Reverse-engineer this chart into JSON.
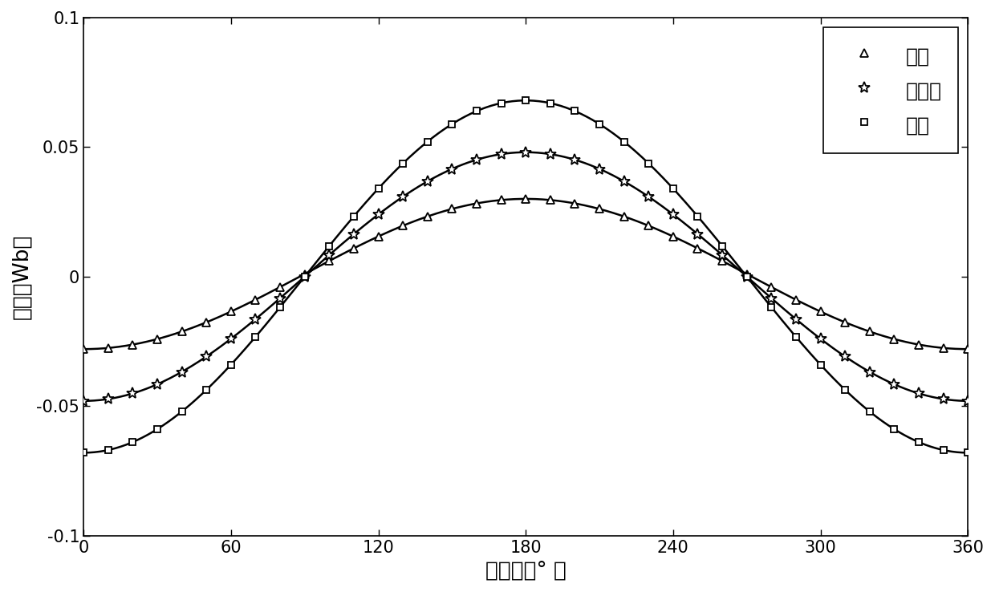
{
  "title": "",
  "xlabel": "电角度（° ）",
  "ylabel": "磁链（Wb）",
  "xlim": [
    0,
    360
  ],
  "ylim": [
    -0.1,
    0.1
  ],
  "xticks": [
    0,
    60,
    120,
    180,
    240,
    300,
    360
  ],
  "yticks": [
    -0.1,
    -0.05,
    0,
    0.05,
    0.1
  ],
  "curves": [
    {
      "label": "去磁",
      "amplitude": 0.029,
      "dc": 0.001,
      "color": "#000000",
      "marker": "^",
      "marker_size": 7,
      "linewidth": 1.8,
      "n_markers": 37
    },
    {
      "label": "纯永磁",
      "amplitude": 0.048,
      "dc": 0.0,
      "color": "#000000",
      "marker": "*",
      "marker_size": 10,
      "linewidth": 1.8,
      "n_markers": 37
    },
    {
      "label": "增磁",
      "amplitude": 0.068,
      "dc": 0.0,
      "color": "#000000",
      "marker": "s",
      "marker_size": 6,
      "linewidth": 1.8,
      "n_markers": 37
    }
  ],
  "background_color": "#ffffff",
  "n_smooth": 500,
  "legend_fontsize": 18,
  "axis_label_fontsize": 19,
  "tick_fontsize": 15
}
